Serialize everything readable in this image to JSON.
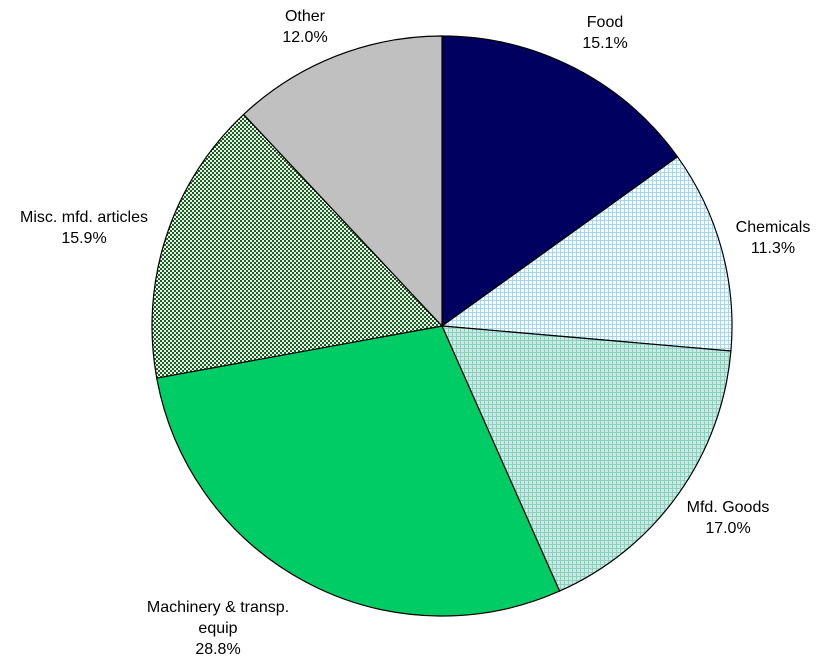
{
  "chart_data": {
    "type": "pie",
    "start_angle_deg": 0,
    "direction": "clockwise",
    "slices": [
      {
        "label": "Food",
        "value": 15.1,
        "value_label": "15.1%",
        "color": "#000060",
        "pattern": "solid"
      },
      {
        "label": "Chemicals",
        "value": 11.3,
        "value_label": "11.3%",
        "color": "#ffffff",
        "pattern": "fine-grid-lightblue"
      },
      {
        "label": "Mfd. Goods",
        "value": 17.0,
        "value_label": "17.0%",
        "color": "#c6e6ef",
        "pattern": "fine-grid-lightgreen"
      },
      {
        "label": "Machinery & transp. equip",
        "label_lines": [
          "Machinery & transp.",
          "equip"
        ],
        "value": 28.8,
        "value_label": "28.8%",
        "color": "#00cc66",
        "pattern": "solid"
      },
      {
        "label": "Misc. mfd. articles",
        "value": 15.9,
        "value_label": "15.9%",
        "color": "#2e7d32",
        "pattern": "checker-green"
      },
      {
        "label": "Other",
        "value": 12.0,
        "value_label": "12.0%",
        "color": "#c0c0c0",
        "pattern": "solid"
      }
    ]
  }
}
